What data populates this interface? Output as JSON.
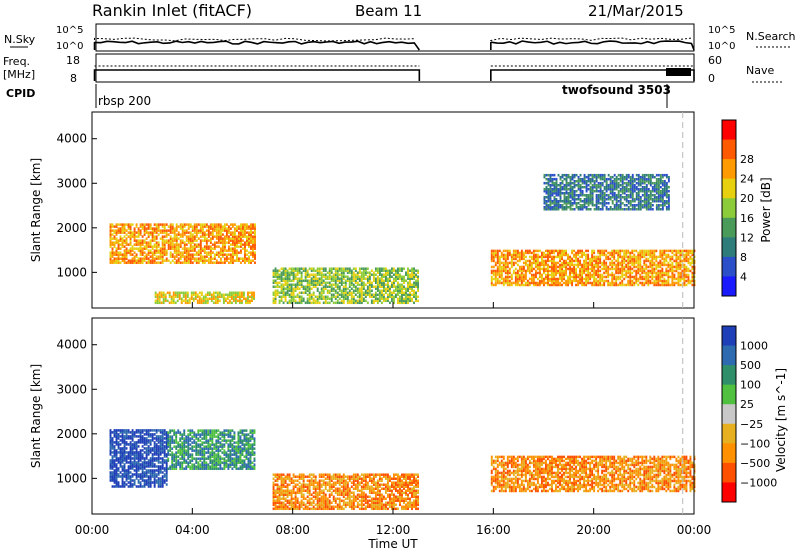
{
  "header": {
    "station": "Rankin Inlet (fitACF)",
    "beam": "Beam 11",
    "date": "21/Mar/2015"
  },
  "noise_panel": {
    "left_label": "N.Sky",
    "right_label": "N.Search",
    "left_ticks": [
      "10^5",
      "10^0"
    ],
    "right_ticks": [
      "10^5",
      "10^0"
    ]
  },
  "freq_panel": {
    "left_label_1": "Freq.",
    "left_label_2": "[MHz]",
    "left_ticks": [
      "18",
      "8"
    ],
    "right_label": "Nave",
    "right_ticks": [
      "60",
      "0"
    ]
  },
  "cpid_panel": {
    "label": "CPID",
    "programs": [
      {
        "name": "rbsp 200",
        "start_hour": 0.0
      },
      {
        "name": "twofsound 3503",
        "start_hour": 23.5
      }
    ]
  },
  "chart_data": [
    {
      "type": "heatmap",
      "name": "power",
      "ylabel": "Slant Range [km]",
      "xlabel": "",
      "xlim_hours": [
        0,
        24
      ],
      "ylim": [
        200,
        4600
      ],
      "yticks": [
        1000,
        2000,
        3000,
        4000
      ],
      "colorbar": {
        "label": "Power [dB]",
        "range": [
          0,
          32
        ],
        "ticks": [
          "4",
          "8",
          "12",
          "16",
          "20",
          "24",
          "28"
        ],
        "colors": [
          "#1a1aff",
          "#2a4fc8",
          "#2e7d7a",
          "#4a9a5a",
          "#8ccc3a",
          "#e6d010",
          "#ff9a00",
          "#ff5a00",
          "#ff0000"
        ]
      },
      "regions": [
        {
          "t0": 0.7,
          "t1": 6.5,
          "r0": 1200,
          "r1": 2100,
          "level": 6
        },
        {
          "t0": 2.5,
          "t1": 6.5,
          "r0": 300,
          "r1": 550,
          "level": 5
        },
        {
          "t0": 7.2,
          "t1": 13.0,
          "r0": 300,
          "r1": 1100,
          "level": 4
        },
        {
          "t0": 15.9,
          "t1": 24.0,
          "r0": 700,
          "r1": 1500,
          "level": 6
        },
        {
          "t0": 18.0,
          "t1": 23.0,
          "r0": 2400,
          "r1": 3200,
          "level": 2
        }
      ]
    },
    {
      "type": "heatmap",
      "name": "velocity",
      "ylabel": "Slant Range [km]",
      "xlabel": "Time UT",
      "xlim_hours": [
        0,
        24
      ],
      "ylim": [
        200,
        4600
      ],
      "yticks": [
        1000,
        2000,
        3000,
        4000
      ],
      "xticks": [
        "00:00",
        "04:00",
        "08:00",
        "12:00",
        "16:00",
        "20:00",
        "00:00"
      ],
      "colorbar": {
        "label": "Velocity [m s^-1]",
        "ticks": [
          "1000",
          "500",
          "100",
          "25",
          "−25",
          "−100",
          "−500",
          "−1000"
        ],
        "colors": [
          "#1f3fb8",
          "#2e6ab0",
          "#2f8f6a",
          "#4fc040",
          "#c8c8c8",
          "#e6b020",
          "#ff9000",
          "#ff5000",
          "#ff0000"
        ]
      },
      "regions": [
        {
          "t0": 0.7,
          "t1": 3.0,
          "r0": 800,
          "r1": 2100,
          "level": 0
        },
        {
          "t0": 3.0,
          "t1": 6.5,
          "r0": 1200,
          "r1": 2100,
          "level": 2
        },
        {
          "t0": 7.2,
          "t1": 13.0,
          "r0": 300,
          "r1": 1100,
          "level": 6
        },
        {
          "t0": 15.9,
          "t1": 24.0,
          "r0": 700,
          "r1": 1500,
          "level": 6
        }
      ]
    }
  ]
}
